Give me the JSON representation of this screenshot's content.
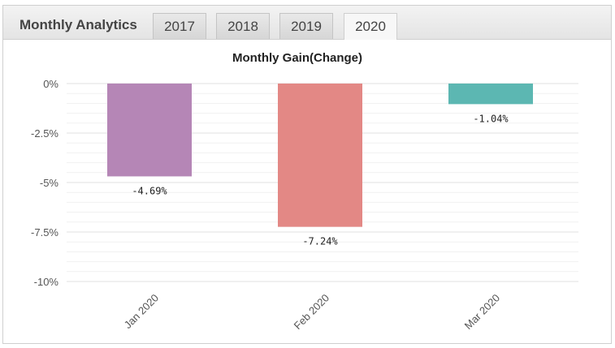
{
  "header": {
    "title": "Monthly Analytics",
    "tabs": [
      {
        "label": "2017",
        "active": false
      },
      {
        "label": "2018",
        "active": false
      },
      {
        "label": "2019",
        "active": false
      },
      {
        "label": "2020",
        "active": true
      }
    ]
  },
  "chart_data": {
    "type": "bar",
    "title": "Monthly Gain(Change)",
    "categories": [
      "Jan 2020",
      "Feb 2020",
      "Mar 2020"
    ],
    "values": [
      -4.69,
      -7.24,
      -1.04
    ],
    "value_labels": [
      "-4.69%",
      "-7.24%",
      "-1.04%"
    ],
    "colors": [
      "#b586b6",
      "#e38885",
      "#5cb7b2"
    ],
    "ylim": [
      -10,
      0
    ],
    "yticks": [
      0,
      -2.5,
      -5,
      -7.5,
      -10
    ],
    "ytick_labels": [
      "0%",
      "-2.5%",
      "-5%",
      "-7.5%",
      "-10%"
    ],
    "grid": true,
    "xlabel": "",
    "ylabel": ""
  }
}
